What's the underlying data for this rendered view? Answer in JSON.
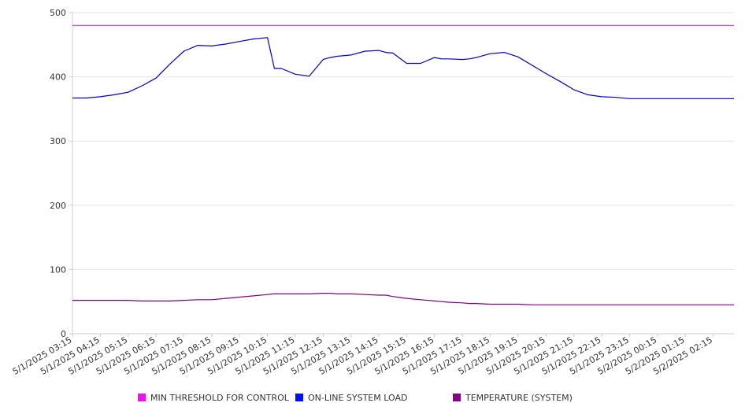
{
  "chart_data": {
    "type": "line",
    "title": "",
    "xlabel": "",
    "ylabel": "",
    "ylim": [
      0,
      500
    ],
    "yticks": [
      0,
      100,
      200,
      300,
      400,
      500
    ],
    "grid": true,
    "legend_position": "bottom",
    "x_tick_labels": [
      "5/1/2025 03:15",
      "5/1/2025 04:15",
      "5/1/2025 05:15",
      "5/1/2025 06:15",
      "5/1/2025 07:15",
      "5/1/2025 08:15",
      "5/1/2025 09:15",
      "5/1/2025 10:15",
      "5/1/2025 11:15",
      "5/1/2025 12:15",
      "5/1/2025 13:15",
      "5/1/2025 14:15",
      "5/1/2025 15:15",
      "5/1/2025 16:15",
      "5/1/2025 17:15",
      "5/1/2025 18:15",
      "5/1/2025 19:15",
      "5/1/2025 20:15",
      "5/1/2025 21:15",
      "5/1/2025 22:15",
      "5/1/2025 23:15",
      "5/2/2025 00:15",
      "5/2/2025 01:15",
      "5/2/2025 02:15"
    ],
    "x": [
      "5/1/2025 03:15",
      "5/1/2025 03:45",
      "5/1/2025 04:15",
      "5/1/2025 04:45",
      "5/1/2025 05:15",
      "5/1/2025 05:45",
      "5/1/2025 06:15",
      "5/1/2025 06:45",
      "5/1/2025 07:15",
      "5/1/2025 07:45",
      "5/1/2025 08:15",
      "5/1/2025 08:45",
      "5/1/2025 09:15",
      "5/1/2025 09:45",
      "5/1/2025 10:15",
      "5/1/2025 10:30",
      "5/1/2025 10:45",
      "5/1/2025 11:15",
      "5/1/2025 11:45",
      "5/1/2025 12:15",
      "5/1/2025 12:30",
      "5/1/2025 12:45",
      "5/1/2025 13:15",
      "5/1/2025 13:45",
      "5/1/2025 14:15",
      "5/1/2025 14:30",
      "5/1/2025 14:45",
      "5/1/2025 15:15",
      "5/1/2025 15:45",
      "5/1/2025 16:15",
      "5/1/2025 16:30",
      "5/1/2025 16:45",
      "5/1/2025 17:15",
      "5/1/2025 17:30",
      "5/1/2025 17:45",
      "5/1/2025 18:15",
      "5/1/2025 18:45",
      "5/1/2025 19:15",
      "5/1/2025 19:45",
      "5/1/2025 20:15",
      "5/1/2025 20:45",
      "5/1/2025 21:15",
      "5/1/2025 21:45",
      "5/1/2025 22:15",
      "5/1/2025 22:45",
      "5/1/2025 23:15",
      "5/1/2025 23:45",
      "5/2/2025 00:15",
      "5/2/2025 00:45",
      "5/2/2025 01:15",
      "5/2/2025 01:45",
      "5/2/2025 02:15",
      "5/2/2025 02:45",
      "5/2/2025 03:00"
    ],
    "series": [
      {
        "name": "MIN THRESHOLD FOR CONTROL",
        "color": "#cc33cc",
        "values": [
          480,
          480,
          480,
          480,
          480,
          480,
          480,
          480,
          480,
          480,
          480,
          480,
          480,
          480,
          480,
          480,
          480,
          480,
          480,
          480,
          480,
          480,
          480,
          480,
          480,
          480,
          480,
          480,
          480,
          480,
          480,
          480,
          480,
          480,
          480,
          480,
          480,
          480,
          480,
          480,
          480,
          480,
          480,
          480,
          480,
          480,
          480,
          480,
          480,
          480,
          480,
          480,
          480,
          480
        ]
      },
      {
        "name": "ON-LINE SYSTEM LOAD",
        "color": "#0000cc",
        "values": [
          367,
          367,
          369,
          372,
          376,
          386,
          398,
          420,
          440,
          449,
          448,
          451,
          455,
          459,
          461,
          413,
          413,
          404,
          401,
          427,
          430,
          432,
          434,
          440,
          441,
          438,
          437,
          421,
          421,
          430,
          428,
          428,
          427,
          428,
          430,
          436,
          438,
          431,
          418,
          405,
          393,
          380,
          372,
          369,
          368,
          366,
          366,
          366,
          366,
          366,
          366,
          366,
          366,
          366
        ]
      },
      {
        "name": "TEMPERATURE (SYSTEM)",
        "color": "#800080",
        "values": [
          52,
          52,
          52,
          52,
          52,
          51,
          51,
          51,
          52,
          53,
          53,
          55,
          57,
          59,
          61,
          62,
          62,
          62,
          62,
          63,
          63,
          62,
          62,
          61,
          60,
          60,
          58,
          55,
          53,
          51,
          50,
          49,
          48,
          47,
          47,
          46,
          46,
          46,
          45,
          45,
          45,
          45,
          45,
          45,
          45,
          45,
          45,
          45,
          45,
          45,
          45,
          45,
          45,
          45
        ]
      }
    ]
  },
  "legend": {
    "items": [
      {
        "label": "MIN THRESHOLD FOR CONTROL",
        "color": "#ee11ee"
      },
      {
        "label": "ON-LINE SYSTEM LOAD",
        "color": "#0011ee"
      },
      {
        "label": "TEMPERATURE (SYSTEM)",
        "color": "#880088"
      }
    ]
  }
}
